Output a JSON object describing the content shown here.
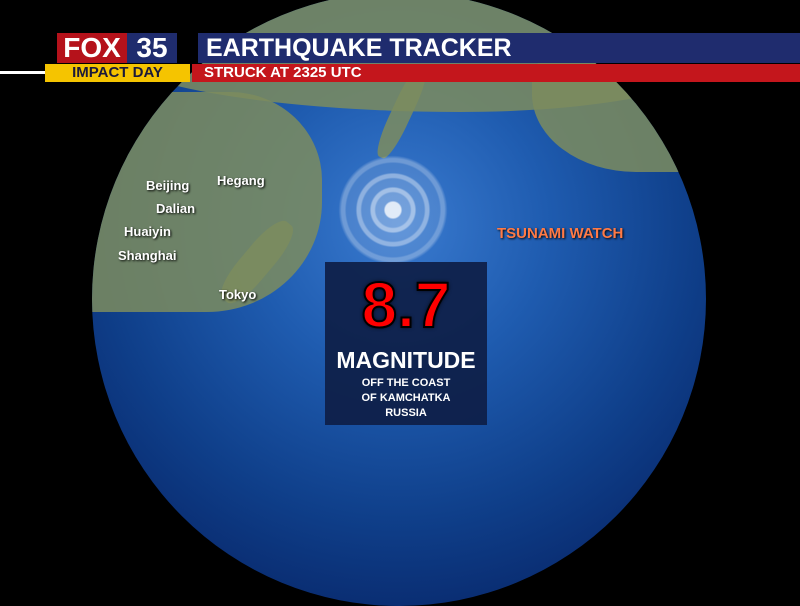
{
  "header": {
    "logo_brand": "FOX",
    "logo_number": "35",
    "tag": "IMPACT DAY",
    "title": "EARTHQUAKE TRACKER",
    "subtitle": "STRUCK AT 2325 UTC"
  },
  "map": {
    "cities": [
      "Beijing",
      "Hegang",
      "Dalian",
      "Huaiyin",
      "Shanghai",
      "Tokyo"
    ],
    "alert": "TSUNAMI WATCH"
  },
  "quake": {
    "magnitude": "8.7",
    "magnitude_label": "MAGNITUDE",
    "location": "OFF THE COAST\nOF KAMCHATKA\nRUSSIA"
  },
  "colors": {
    "magnitude": "#ff0000",
    "alert": "#ff7a45",
    "navy": "#1f2c6e",
    "red": "#c4161c",
    "yellow": "#f5c400"
  }
}
